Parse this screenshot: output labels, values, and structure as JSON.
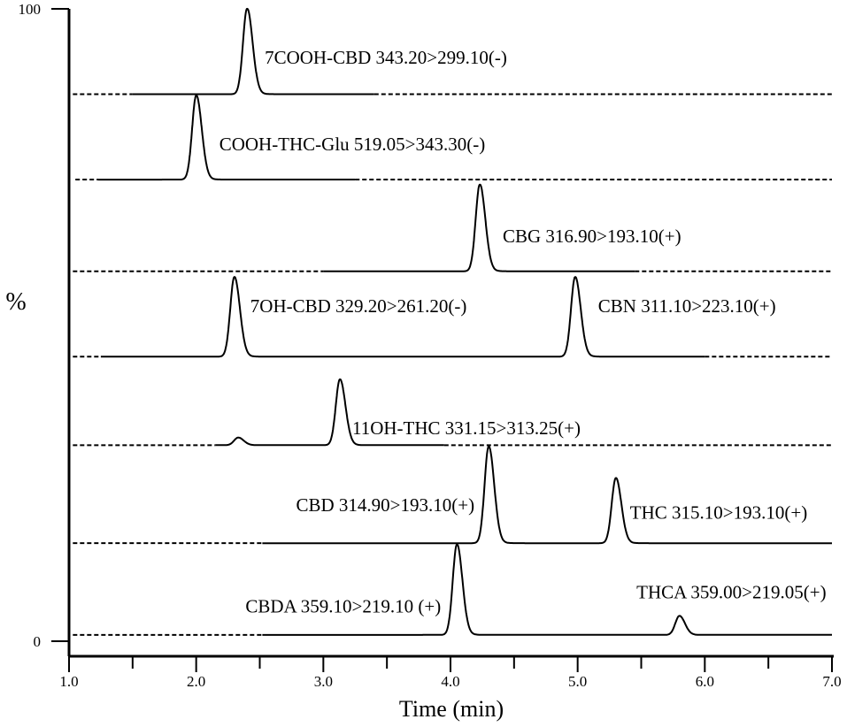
{
  "chart_data": {
    "type": "line",
    "title": "",
    "xlabel": "Time (min)",
    "ylabel": "%",
    "xlim": [
      1.0,
      7.0
    ],
    "ylim": [
      0,
      100
    ],
    "x_ticks": [
      "1.0",
      "2.0",
      "3.0",
      "4.0",
      "5.0",
      "6.0",
      "7.0"
    ],
    "y_ticks": [
      "0",
      "100"
    ],
    "traces": [
      {
        "baseline": 86.5,
        "solid_range": [
          1.5,
          3.4
        ],
        "noise_start": 1.03,
        "peaks": [
          {
            "label": "7COOH-CBD 343.20>299.10(-)",
            "rt": 2.4,
            "apex": 100
          }
        ]
      },
      {
        "baseline": 73.0,
        "solid_range": [
          1.23,
          3.25
        ],
        "noise_start": 1.05,
        "peaks": [
          {
            "label": "COOH-THC-Glu 519.05>343.30(-)",
            "rt": 2.0,
            "apex": 86.3
          }
        ]
      },
      {
        "baseline": 58.5,
        "solid_range": [
          3.0,
          5.45
        ],
        "noise_start": 1.03,
        "peaks": [
          {
            "label": "CBG 316.90>193.10(+)",
            "rt": 4.23,
            "apex": 72.2
          }
        ]
      },
      {
        "baseline": 45.0,
        "solid_range": [
          1.25,
          6.0
        ],
        "noise_start": 1.03,
        "peaks": [
          {
            "label": "7OH-CBD 329.20>261.20(-)",
            "rt": 2.3,
            "apex": 57.6
          },
          {
            "label": "CBN 311.10>223.10(+)",
            "rt": 4.98,
            "apex": 57.6
          }
        ]
      },
      {
        "baseline": 31.0,
        "solid_range": [
          2.15,
          3.95
        ],
        "noise_start": 1.03,
        "peaks": [
          {
            "label": "",
            "rt": 2.33,
            "apex": 32.2
          },
          {
            "label": "11OH-THC 331.15>313.25(+)",
            "rt": 3.13,
            "apex": 41.4
          }
        ]
      },
      {
        "baseline": 15.5,
        "solid_range": [
          2.52,
          7.0
        ],
        "noise_start": 1.03,
        "peaks": [
          {
            "label": "CBD 314.90>193.10(+)",
            "rt": 4.3,
            "apex": 30.8
          },
          {
            "label": "THC 315.10>193.10(+)",
            "rt": 5.3,
            "apex": 25.8
          }
        ]
      },
      {
        "baseline": 1.0,
        "solid_range": [
          2.52,
          7.0
        ],
        "noise_start": 1.03,
        "peaks": [
          {
            "label": "CBDA 359.10>219.10 (+)",
            "rt": 4.05,
            "apex": 15.3
          },
          {
            "label": "THCA 359.00>219.05(+)",
            "rt": 5.8,
            "apex": 4.0
          }
        ]
      }
    ]
  }
}
